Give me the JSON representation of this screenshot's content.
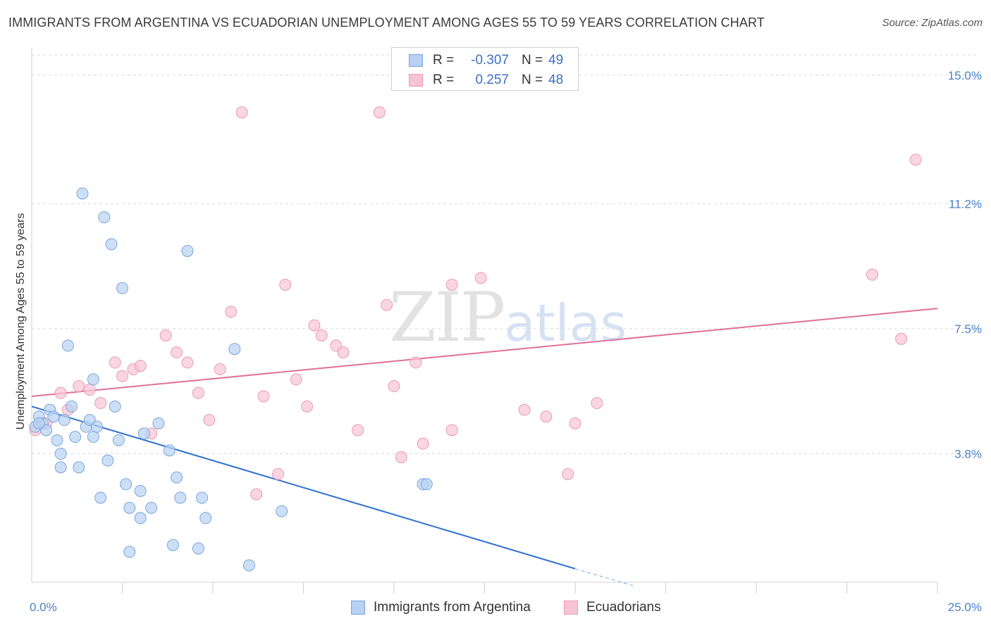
{
  "title": "IMMIGRANTS FROM ARGENTINA VS ECUADORIAN UNEMPLOYMENT AMONG AGES 55 TO 59 YEARS CORRELATION CHART",
  "source": "Source: ZipAtlas.com",
  "watermark": {
    "zip": "ZIP",
    "atlas": "atlas"
  },
  "legend": {
    "rows": [
      {
        "r_label": "R =",
        "r_value": "-0.307",
        "n_label": "N =",
        "n_value": "49"
      },
      {
        "r_label": "R =",
        "r_value": "0.257",
        "n_label": "N =",
        "n_value": "48"
      }
    ]
  },
  "colors": {
    "blue_fill": "#b8d1f2",
    "blue_stroke": "#7aa5dc",
    "blue_line": "#2f6fcf",
    "pink_fill": "#f7c4d4",
    "pink_stroke": "#eb9ab5",
    "pink_line": "#e0709a",
    "grid": "#d9d9d9"
  },
  "chart_data": {
    "type": "scatter",
    "title": "IMMIGRANTS FROM ARGENTINA VS ECUADORIAN UNEMPLOYMENT AMONG AGES 55 TO 59 YEARS CORRELATION CHART",
    "xlabel": "",
    "ylabel": "Unemployment Among Ages 55 to 59 years",
    "xlim": [
      0,
      25
    ],
    "ylim": [
      0,
      15.6
    ],
    "x_ticks": [
      {
        "value": 0,
        "label": "0.0%"
      },
      {
        "value": 25,
        "label": "25.0%"
      }
    ],
    "y_ticks": [
      {
        "value": 3.8,
        "label": "3.8%"
      },
      {
        "value": 7.5,
        "label": "7.5%"
      },
      {
        "value": 11.2,
        "label": "11.2%"
      },
      {
        "value": 15.0,
        "label": "15.0%"
      }
    ],
    "series": [
      {
        "name": "Immigrants from Argentina",
        "color": "blue",
        "points": [
          [
            0.1,
            4.6
          ],
          [
            0.2,
            4.9
          ],
          [
            0.3,
            4.7
          ],
          [
            0.4,
            4.5
          ],
          [
            0.5,
            5.1
          ],
          [
            0.6,
            4.9
          ],
          [
            0.7,
            4.2
          ],
          [
            0.8,
            3.8
          ],
          [
            0.8,
            3.4
          ],
          [
            0.9,
            4.8
          ],
          [
            1.0,
            7.0
          ],
          [
            1.1,
            5.2
          ],
          [
            1.2,
            4.3
          ],
          [
            1.3,
            3.4
          ],
          [
            1.4,
            11.5
          ],
          [
            1.5,
            4.6
          ],
          [
            1.6,
            4.8
          ],
          [
            1.7,
            4.3
          ],
          [
            1.7,
            6.0
          ],
          [
            1.8,
            4.6
          ],
          [
            1.9,
            2.5
          ],
          [
            2.0,
            10.8
          ],
          [
            2.1,
            3.6
          ],
          [
            2.2,
            10.0
          ],
          [
            2.3,
            5.2
          ],
          [
            2.4,
            4.2
          ],
          [
            2.5,
            8.7
          ],
          [
            2.6,
            2.9
          ],
          [
            2.7,
            0.9
          ],
          [
            2.7,
            2.2
          ],
          [
            3.0,
            1.9
          ],
          [
            3.0,
            2.7
          ],
          [
            3.1,
            4.4
          ],
          [
            3.3,
            2.2
          ],
          [
            3.5,
            4.7
          ],
          [
            3.8,
            3.9
          ],
          [
            3.9,
            1.1
          ],
          [
            4.0,
            3.1
          ],
          [
            4.1,
            2.5
          ],
          [
            4.3,
            9.8
          ],
          [
            4.6,
            1.0
          ],
          [
            4.7,
            2.5
          ],
          [
            4.8,
            1.9
          ],
          [
            5.6,
            6.9
          ],
          [
            6.0,
            0.5
          ],
          [
            6.9,
            2.1
          ],
          [
            10.8,
            2.9
          ],
          [
            10.9,
            2.9
          ],
          [
            0.2,
            4.7
          ]
        ]
      },
      {
        "name": "Ecuadorians",
        "color": "pink",
        "points": [
          [
            0.1,
            4.5
          ],
          [
            0.4,
            4.7
          ],
          [
            0.8,
            5.6
          ],
          [
            1.0,
            5.1
          ],
          [
            1.3,
            5.8
          ],
          [
            1.6,
            5.7
          ],
          [
            1.9,
            5.3
          ],
          [
            2.3,
            6.5
          ],
          [
            2.5,
            6.1
          ],
          [
            2.8,
            6.3
          ],
          [
            3.0,
            6.4
          ],
          [
            3.3,
            4.4
          ],
          [
            3.7,
            7.3
          ],
          [
            4.0,
            6.8
          ],
          [
            4.3,
            6.5
          ],
          [
            4.6,
            5.6
          ],
          [
            4.9,
            4.8
          ],
          [
            5.2,
            6.3
          ],
          [
            5.5,
            8.0
          ],
          [
            5.8,
            13.9
          ],
          [
            6.2,
            2.6
          ],
          [
            6.4,
            5.5
          ],
          [
            6.8,
            3.2
          ],
          [
            7.0,
            8.8
          ],
          [
            7.3,
            6.0
          ],
          [
            7.6,
            5.2
          ],
          [
            7.8,
            7.6
          ],
          [
            8.0,
            7.3
          ],
          [
            8.4,
            7.0
          ],
          [
            8.6,
            6.8
          ],
          [
            9.0,
            4.5
          ],
          [
            9.6,
            13.9
          ],
          [
            9.8,
            8.2
          ],
          [
            10.0,
            5.8
          ],
          [
            10.2,
            3.7
          ],
          [
            10.6,
            6.5
          ],
          [
            10.8,
            4.1
          ],
          [
            11.6,
            8.8
          ],
          [
            11.6,
            4.5
          ],
          [
            12.4,
            9.0
          ],
          [
            13.6,
            5.1
          ],
          [
            14.2,
            4.9
          ],
          [
            14.8,
            3.2
          ],
          [
            15.0,
            4.7
          ],
          [
            15.6,
            5.3
          ],
          [
            23.2,
            9.1
          ],
          [
            24.0,
            7.2
          ],
          [
            24.4,
            12.5
          ]
        ]
      }
    ],
    "trendlines": [
      {
        "series": "Immigrants from Argentina",
        "x0": 0,
        "y0": 5.2,
        "x1": 15.0,
        "y1": 0.4,
        "dashed_to_x": 16.6,
        "dashed_to_y": -0.1
      },
      {
        "series": "Ecuadorians",
        "x0": 0,
        "y0": 5.5,
        "x1": 25.0,
        "y1": 8.1
      }
    ],
    "legend_position": "top-center",
    "grid": true
  }
}
